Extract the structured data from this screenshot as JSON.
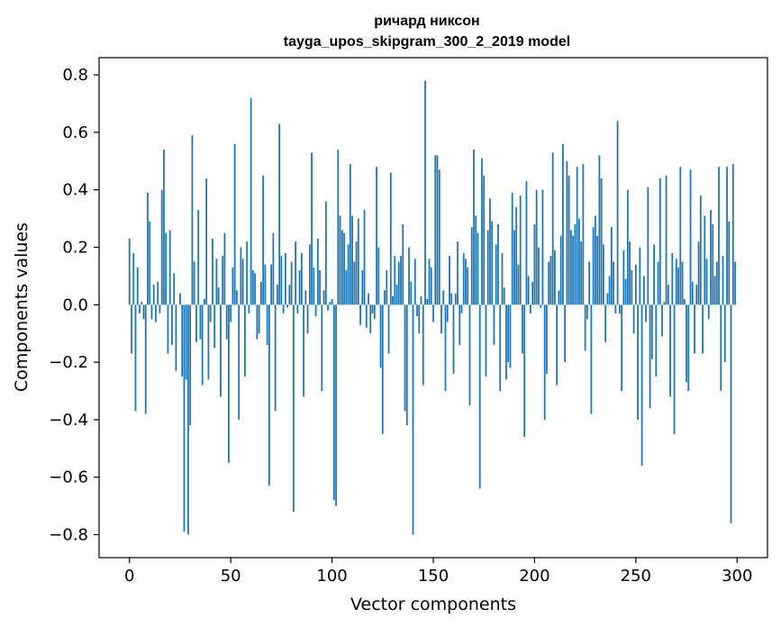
{
  "chart_data": {
    "type": "bar",
    "title_line1": "ричард никсон",
    "title_line2": "tayga_upos_skipgram_300_2_2019 model",
    "xlabel": "Vector components",
    "ylabel": "Components values",
    "xlim": [
      -15,
      315
    ],
    "ylim": [
      -0.88,
      0.86
    ],
    "xticks": [
      0,
      50,
      100,
      150,
      200,
      250,
      300
    ],
    "xtick_labels": [
      "0",
      "50",
      "100",
      "150",
      "200",
      "250",
      "300"
    ],
    "yticks": [
      -0.8,
      -0.6,
      -0.4,
      -0.2,
      0.0,
      0.2,
      0.4,
      0.6,
      0.8
    ],
    "ytick_labels": [
      "−0.8",
      "−0.6",
      "−0.4",
      "−0.2",
      "0.0",
      "0.2",
      "0.4",
      "0.6",
      "0.8"
    ],
    "bar_color": "#1f77b4",
    "x_start": 0,
    "values": [
      0.23,
      -0.17,
      0.18,
      -0.37,
      0.13,
      -0.03,
      0.01,
      -0.05,
      -0.38,
      0.39,
      0.29,
      -0.05,
      0.07,
      -0.06,
      0.08,
      -0.03,
      0.4,
      0.54,
      0.25,
      -0.17,
      0.26,
      -0.14,
      0.11,
      -0.23,
      0.0,
      0.04,
      -0.25,
      -0.79,
      -0.26,
      -0.8,
      -0.42,
      0.59,
      0.15,
      -0.13,
      0.33,
      -0.12,
      -0.28,
      0.02,
      0.44,
      -0.26,
      -0.06,
      0.23,
      -0.15,
      0.16,
      0.06,
      -0.32,
      0.17,
      0.25,
      -0.12,
      -0.55,
      -0.06,
      0.13,
      0.56,
      0.05,
      -0.4,
      0.2,
      0.16,
      -0.25,
      0.22,
      -0.03,
      0.72,
      0.12,
      0.11,
      -0.12,
      -0.1,
      0.08,
      0.45,
      0.14,
      -0.14,
      -0.63,
      0.14,
      0.25,
      -0.37,
      0.07,
      0.63,
      0.17,
      -0.03,
      0.18,
      -0.01,
      0.07,
      0.15,
      -0.72,
      0.22,
      -0.03,
      0.12,
      0.18,
      -0.32,
      0.05,
      -0.1,
      0.21,
      0.53,
      0.13,
      -0.04,
      0.23,
      0.12,
      -0.3,
      0.05,
      0.36,
      -0.02,
      0.01,
      0.02,
      -0.68,
      -0.7,
      0.54,
      0.31,
      0.26,
      0.25,
      0.12,
      0.21,
      0.49,
      0.31,
      0.15,
      0.22,
      0.3,
      -0.07,
      0.12,
      0.33,
      -0.08,
      0.04,
      -0.1,
      -0.03,
      -0.05,
      0.48,
      0.2,
      -0.22,
      -0.45,
      0.05,
      0.12,
      -0.17,
      0.46,
      0.03,
      0.17,
      0.07,
      0.15,
      0.17,
      0.28,
      -0.37,
      -0.42,
      0.2,
      0.08,
      -0.8,
      0.16,
      -0.04,
      -0.1,
      0.03,
      -0.28,
      0.78,
      0.02,
      0.16,
      0.13,
      -0.06,
      0.52,
      0.52,
      0.47,
      -0.1,
      0.05,
      -0.3,
      -0.06,
      0.17,
      0.04,
      -0.24,
      0.04,
      0.22,
      -0.14,
      -0.03,
      0.18,
      0.16,
      0.13,
      -0.35,
      0.27,
      0.54,
      0.31,
      0.25,
      -0.64,
      0.51,
      0.45,
      -0.25,
      0.26,
      0.37,
      0.29,
      -0.14,
      0.21,
      0.28,
      -0.3,
      0.18,
      0.06,
      -0.26,
      -0.2,
      -0.22,
      0.39,
      0.26,
      0.34,
      0.14,
      0.38,
      -0.17,
      -0.46,
      0.43,
      0.1,
      -0.03,
      0.08,
      0.28,
      0.4,
      0.2,
      -0.01,
      0.4,
      -0.4,
      -0.24,
      0.15,
      0.17,
      0.53,
      0.19,
      -0.28,
      0.05,
      0.24,
      0.56,
      -0.2,
      0.5,
      0.45,
      0.26,
      0.24,
      0.28,
      0.48,
      0.3,
      0.22,
      0.49,
      -0.16,
      -0.05,
      0.15,
      -0.38,
      0.27,
      0.31,
      0.24,
      0.52,
      0.44,
      0.21,
      -0.13,
      0.04,
      0.1,
      0.27,
      0.15,
      -0.03,
      0.64,
      -0.03,
      -0.3,
      0.19,
      0.09,
      0.4,
      0.22,
      0.12,
      -0.1,
      0.14,
      -0.4,
      0.2,
      -0.56,
      0.1,
      -0.06,
      0.41,
      -0.36,
      -0.19,
      0.21,
      -0.25,
      0.15,
      0.44,
      -0.11,
      0.01,
      0.45,
      0.07,
      -0.32,
      0.18,
      -0.45,
      0.16,
      0.13,
      0.48,
      0.15,
      0.02,
      -0.27,
      -0.3,
      0.47,
      0.08,
      -0.17,
      0.07,
      0.22,
      0.38,
      -0.17,
      0.31,
      0.16,
      -0.05,
      0.33,
      0.28,
      0.1,
      0.15,
      0.48,
      -0.3,
      0.17,
      -0.2,
      0.48,
      0.29,
      -0.76,
      0.49,
      0.15
    ]
  }
}
